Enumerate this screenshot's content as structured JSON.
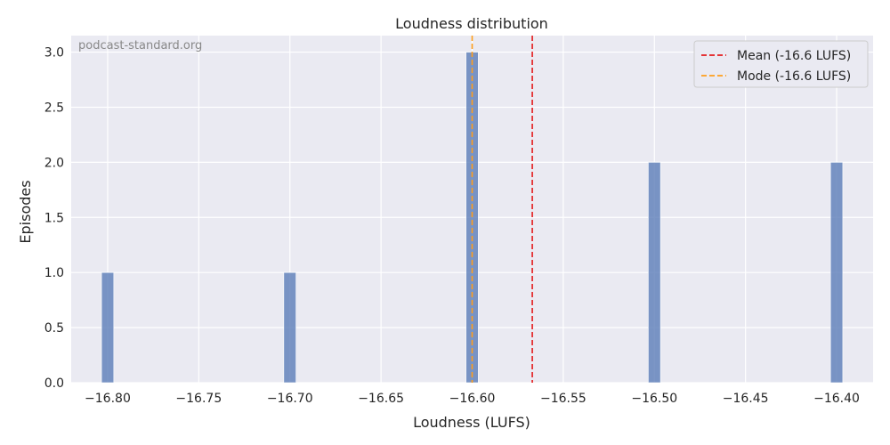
{
  "chart_data": {
    "type": "bar",
    "title": "Loudness distribution",
    "xlabel": "Loudness (LUFS)",
    "ylabel": "Episodes",
    "watermark": "podcast-standard.org",
    "xlim": [
      -16.82,
      -16.38
    ],
    "ylim": [
      0,
      3.15
    ],
    "xticks": [
      -16.8,
      -16.75,
      -16.7,
      -16.65,
      -16.6,
      -16.55,
      -16.5,
      -16.45,
      -16.4
    ],
    "xtick_labels": [
      "−16.80",
      "−16.75",
      "−16.70",
      "−16.65",
      "−16.60",
      "−16.55",
      "−16.50",
      "−16.45",
      "−16.40"
    ],
    "yticks": [
      0.0,
      0.5,
      1.0,
      1.5,
      2.0,
      2.5,
      3.0
    ],
    "ytick_labels": [
      "0.0",
      "0.5",
      "1.0",
      "1.5",
      "2.0",
      "2.5",
      "3.0"
    ],
    "bar_width": 0.0067,
    "bins": [
      {
        "x": -16.8,
        "count": 1
      },
      {
        "x": -16.7,
        "count": 1
      },
      {
        "x": -16.6,
        "count": 3
      },
      {
        "x": -16.5,
        "count": 2
      },
      {
        "x": -16.4,
        "count": 2
      }
    ],
    "reference_lines": [
      {
        "label": "Mean (-16.6 LUFS)",
        "x": -16.567,
        "color": "#e41a1c"
      },
      {
        "label": "Mode (-16.6 LUFS)",
        "x": -16.6,
        "color": "#ff9f1c"
      }
    ],
    "bar_color": "#5b7db8",
    "background": "#eaeaf2",
    "grid": true,
    "legend_position": "top-right"
  }
}
